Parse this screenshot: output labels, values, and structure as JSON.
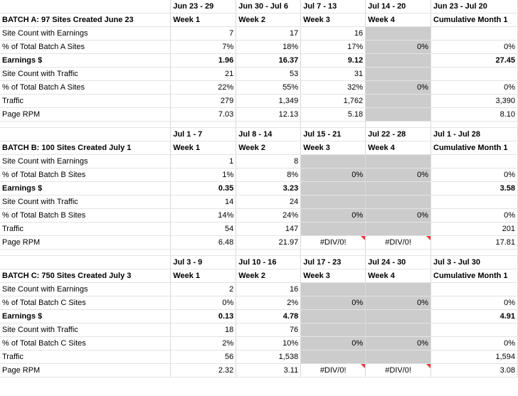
{
  "batches": [
    {
      "title": "BATCH A: 97 Sites Created June 23",
      "dates": [
        "Jun 23 - 29",
        "Jun 30 - Jul 6",
        "Jul 7 - 13",
        "Jul 14 - 20",
        "Jun 23 - Jul 20"
      ],
      "weeks": [
        "Week 1",
        "Week 2",
        "Week 3",
        "Week 4",
        "Cumulative Month 1"
      ],
      "rows": [
        {
          "label": "Site Count with Earnings",
          "vals": [
            "7",
            "17",
            "16",
            "",
            ""
          ]
        },
        {
          "label": "% of Total Batch A Sites",
          "vals": [
            "7%",
            "18%",
            "17%",
            "0%",
            "0%"
          ]
        },
        {
          "label": "Earnings $",
          "vals": [
            "1.96",
            "16.37",
            "9.12",
            "",
            "27.45"
          ]
        },
        {
          "label": "Site Count with Traffic",
          "vals": [
            "21",
            "53",
            "31",
            "",
            ""
          ]
        },
        {
          "label": "% of Total Batch A Sites",
          "vals": [
            "22%",
            "55%",
            "32%",
            "0%",
            "0%"
          ]
        },
        {
          "label": "Traffic",
          "vals": [
            "279",
            "1,349",
            "1,762",
            "",
            "3,390"
          ]
        },
        {
          "label": "Page RPM",
          "vals": [
            "7.03",
            "12.13",
            "5.18",
            "",
            "8.10"
          ]
        }
      ]
    },
    {
      "title": "BATCH B: 100 Sites Created July 1",
      "dates": [
        "Jul 1 - 7",
        "Jul 8 - 14",
        "Jul 15 - 21",
        "Jul 22 - 28",
        "Jul 1 - Jul 28"
      ],
      "weeks": [
        "Week 1",
        "Week 2",
        "Week 3",
        "Week 4",
        "Cumulative Month 1"
      ],
      "rows": [
        {
          "label": "Site Count with Earnings",
          "vals": [
            "1",
            "8",
            "",
            "",
            ""
          ]
        },
        {
          "label": "% of Total Batch B Sites",
          "vals": [
            "1%",
            "8%",
            "0%",
            "0%",
            "0%"
          ]
        },
        {
          "label": "Earnings $",
          "vals": [
            "0.35",
            "3.23",
            "",
            "",
            "3.58"
          ]
        },
        {
          "label": "Site Count with Traffic",
          "vals": [
            "14",
            "24",
            "",
            "",
            ""
          ]
        },
        {
          "label": "% of Total Batch B Sites",
          "vals": [
            "14%",
            "24%",
            "0%",
            "0%",
            "0%"
          ]
        },
        {
          "label": "Traffic",
          "vals": [
            "54",
            "147",
            "",
            "",
            "201"
          ]
        },
        {
          "label": "Page RPM",
          "vals": [
            "6.48",
            "21.97",
            "#DIV/0!",
            "#DIV/0!",
            "17.81"
          ]
        }
      ]
    },
    {
      "title": "BATCH C: 750 Sites Created July 3",
      "dates": [
        "Jul 3 - 9",
        "Jul 10 - 16",
        "Jul 17 - 23",
        "Jul 24 - 30",
        "Jul 3 - Jul 30"
      ],
      "weeks": [
        "Week 1",
        "Week 2",
        "Week 3",
        "Week 4",
        "Cumulative Month 1"
      ],
      "rows": [
        {
          "label": "Site Count with Earnings",
          "vals": [
            "2",
            "16",
            "",
            "",
            ""
          ]
        },
        {
          "label": "% of Total Batch C Sites",
          "vals": [
            "0%",
            "2%",
            "0%",
            "0%",
            "0%"
          ]
        },
        {
          "label": "Earnings $",
          "vals": [
            "0.13",
            "4.78",
            "",
            "",
            "4.91"
          ]
        },
        {
          "label": "Site Count with Traffic",
          "vals": [
            "18",
            "76",
            "",
            "",
            ""
          ]
        },
        {
          "label": "% of Total Batch C Sites",
          "vals": [
            "2%",
            "10%",
            "0%",
            "0%",
            "0%"
          ]
        },
        {
          "label": "Traffic",
          "vals": [
            "56",
            "1,538",
            "",
            "",
            "1,594"
          ]
        },
        {
          "label": "Page RPM",
          "vals": [
            "2.32",
            "3.11",
            "#DIV/0!",
            "#DIV/0!",
            "3.08"
          ]
        }
      ]
    }
  ]
}
